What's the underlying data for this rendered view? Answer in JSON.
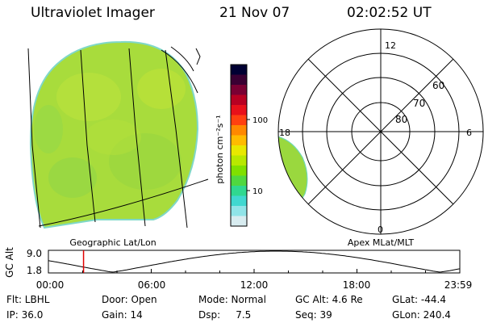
{
  "header": {
    "title": "Ultraviolet Imager",
    "date": "21 Nov 07",
    "time": "02:02:52 UT"
  },
  "left_panel": {
    "caption": "Geographic Lat/Lon"
  },
  "colorbar": {
    "unit_label": "photon cm⁻²s⁻¹",
    "ticks": [
      "100",
      "10"
    ],
    "colors": [
      "#000033",
      "#3a0033",
      "#7a0033",
      "#b80022",
      "#e8101a",
      "#ff4010",
      "#ff8800",
      "#ffbb00",
      "#e8e800",
      "#b8e800",
      "#80e000",
      "#50d840",
      "#30d890",
      "#40d8d0",
      "#90e4e8",
      "#d8ecf0"
    ]
  },
  "polar_plot": {
    "caption": "Apex MLat/MLT",
    "mlt_labels": {
      "top": "12",
      "right": "6",
      "bottom": "0",
      "left": "18"
    },
    "lat_labels": [
      "60",
      "70",
      "80"
    ]
  },
  "altitude_plot": {
    "ylabel": "GC Alt",
    "yticks": [
      "9.0",
      "1.8"
    ],
    "xticks": [
      "00:00",
      "06:00",
      "12:00",
      "18:00",
      "23:59"
    ],
    "marker_time_hours": 2.05
  },
  "info": {
    "flt": "Flt: LBHL",
    "ip": "IP: 36.0",
    "door": "Door: Open",
    "gain": "Gain: 14",
    "mode": "Mode: Normal",
    "dsp": "Dsp:     7.5",
    "gc_alt": "GC Alt: 4.6 Re",
    "seq": "Seq: 39",
    "glat": "GLat: -44.4",
    "glon": "GLon: 240.4"
  }
}
